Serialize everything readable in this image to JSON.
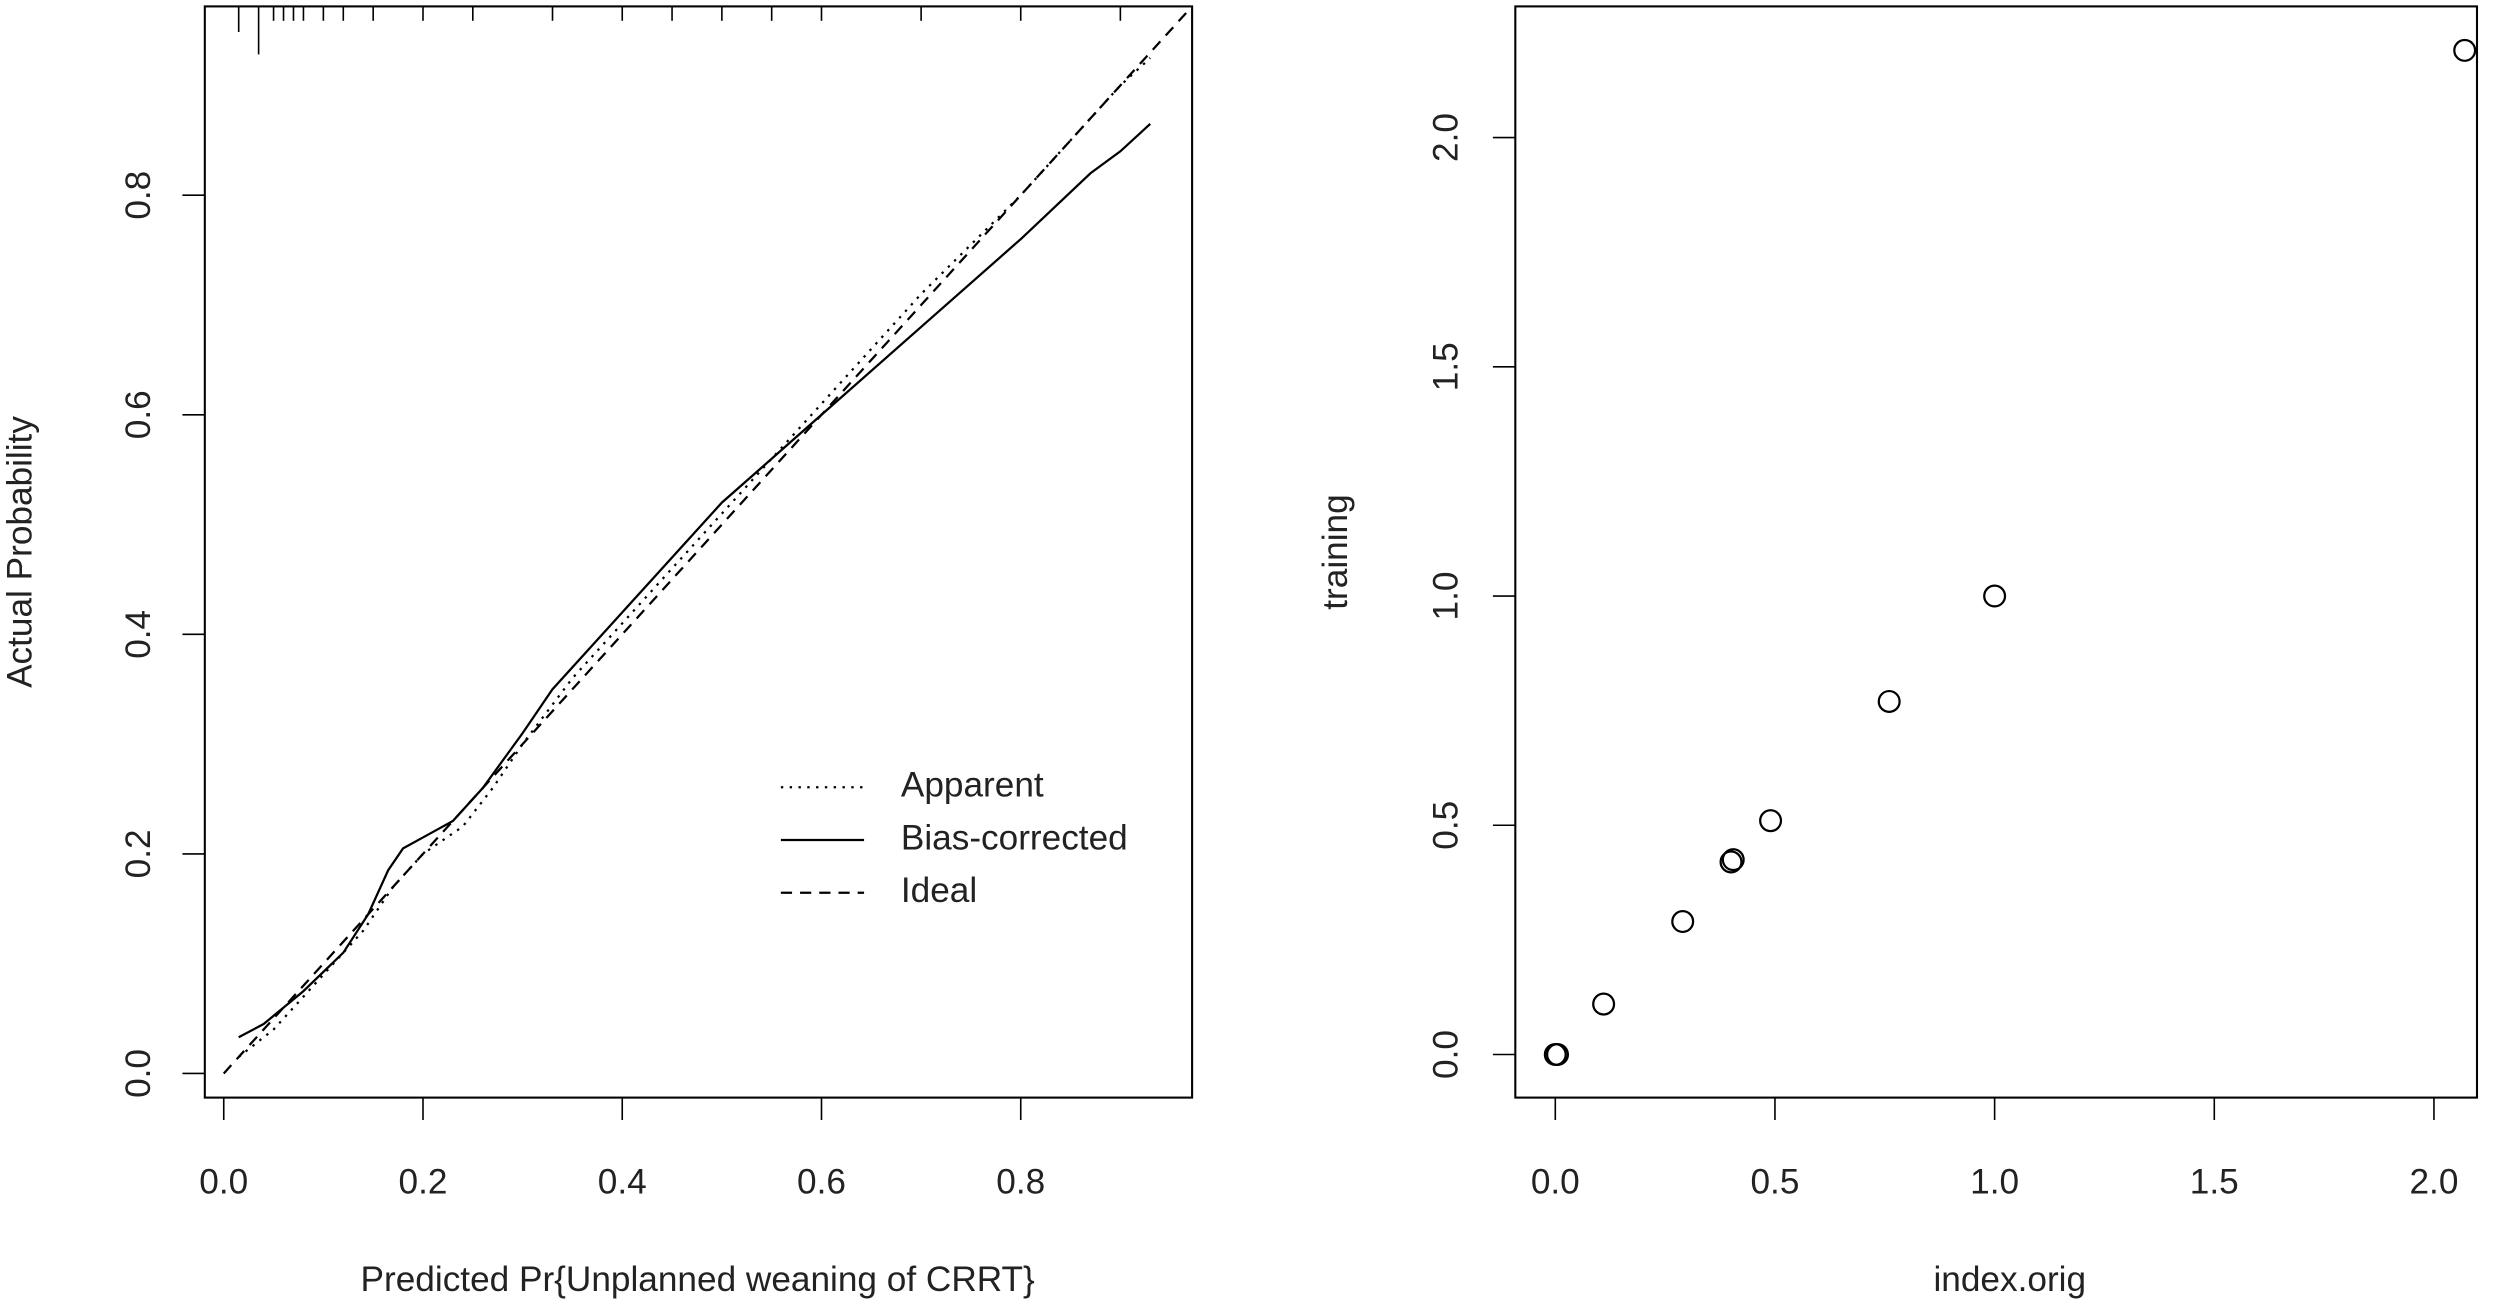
{
  "chart_data": [
    {
      "type": "line",
      "xlabel": "Predicted Pr{Unplanned weaning of CRRT}",
      "ylabel": "Actual Probability",
      "xlim": [
        -0.019,
        0.972
      ],
      "ylim": [
        -0.022,
        0.972
      ],
      "xticks": [
        {
          "value": 0,
          "label": "0.0"
        },
        0.2,
        0.4,
        0.6,
        0.8
      ],
      "yticks": [
        {
          "value": 0,
          "label": "0.0"
        },
        0.2,
        0.4,
        0.6,
        0.8
      ],
      "legend": "lower right",
      "rug": [
        0.015,
        0.035,
        0.05,
        0.06,
        0.07,
        0.08,
        0.1,
        0.12,
        0.15,
        0.2,
        0.25,
        0.33,
        0.4,
        0.45,
        0.5,
        0.55,
        0.6,
        0.7,
        0.8,
        0.9
      ],
      "series": [
        {
          "name": "Apparent",
          "color": "#000000",
          "style": "dotted",
          "x": [
            0.015,
            0.05,
            0.1,
            0.14,
            0.17,
            0.2,
            0.24,
            0.27,
            0.3,
            0.35,
            0.4,
            0.5,
            0.6,
            0.7,
            0.8,
            0.9,
            0.93
          ],
          "y": [
            0.015,
            0.04,
            0.09,
            0.13,
            0.17,
            0.2,
            0.225,
            0.26,
            0.3,
            0.36,
            0.41,
            0.51,
            0.61,
            0.71,
            0.8,
            0.9,
            0.925
          ]
        },
        {
          "name": "Bias-corrected",
          "color": "#000000",
          "style": "solid",
          "x": [
            0.015,
            0.04,
            0.08,
            0.12,
            0.145,
            0.165,
            0.18,
            0.2,
            0.23,
            0.26,
            0.3,
            0.33,
            0.4,
            0.5,
            0.6,
            0.7,
            0.8,
            0.87,
            0.9,
            0.93
          ],
          "y": [
            0.033,
            0.045,
            0.075,
            0.11,
            0.145,
            0.185,
            0.205,
            0.215,
            0.23,
            0.26,
            0.31,
            0.35,
            0.42,
            0.52,
            0.6,
            0.68,
            0.76,
            0.82,
            0.84,
            0.865
          ]
        },
        {
          "name": "Ideal",
          "color": "#000000",
          "style": "dashed",
          "x": [
            0,
            0.97
          ],
          "y": [
            0,
            0.97
          ]
        }
      ]
    },
    {
      "type": "scatter",
      "xlabel": "index.orig",
      "ylabel": "training",
      "xlim": [
        -0.091,
        2.098
      ],
      "ylim": [
        -0.094,
        2.286
      ],
      "xticks": [
        {
          "value": 0,
          "label": "0.0"
        },
        0.5,
        {
          "value": 1,
          "label": "1.0"
        },
        1.5,
        {
          "value": 2,
          "label": "2.0"
        }
      ],
      "yticks": [
        {
          "value": 0,
          "label": "0.0"
        },
        0.5,
        {
          "value": 1,
          "label": "1.0"
        },
        1.5,
        {
          "value": 2,
          "label": "2.0"
        }
      ],
      "color": "#000000",
      "x": [
        0,
        0.005,
        0.11,
        0.29,
        0.4,
        0.405,
        0.49,
        0.76,
        1.0,
        2.07
      ],
      "y": [
        0,
        0.0,
        0.11,
        0.29,
        0.42,
        0.425,
        0.51,
        0.77,
        1.0,
        2.19
      ]
    }
  ]
}
